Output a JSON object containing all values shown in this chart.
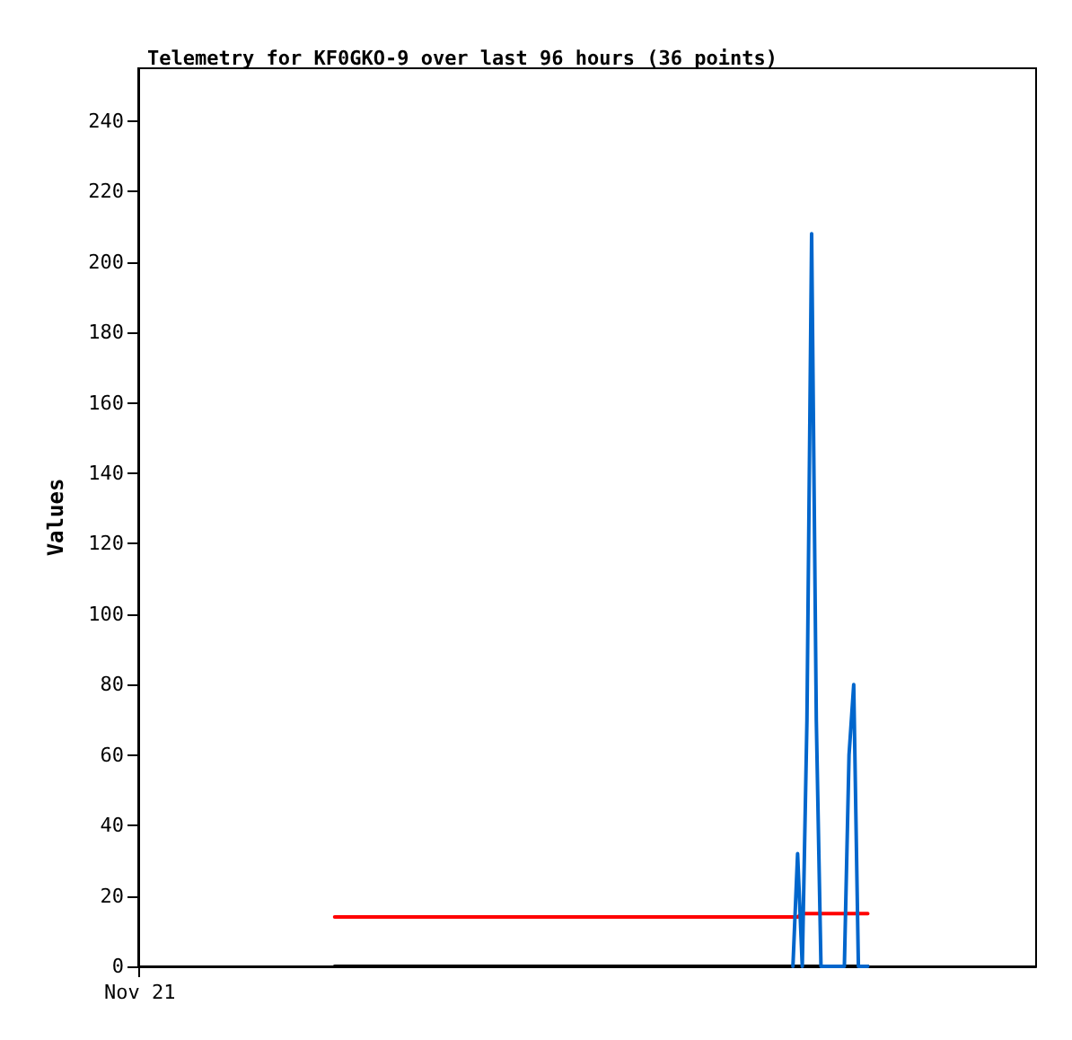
{
  "chart_data": {
    "type": "line",
    "title": "Telemetry for KF0GKO-9 over last 96 hours (36 points)",
    "ylabel": "Values",
    "annotations": [
      "Nov 21"
    ],
    "categories": [
      null,
      null,
      null,
      null,
      null,
      null,
      null,
      null,
      null,
      null,
      null,
      null,
      null,
      null,
      null,
      null,
      null,
      null,
      null,
      null,
      null,
      null,
      null,
      null,
      null,
      null,
      null,
      null,
      null,
      null,
      null,
      null,
      null,
      null,
      null,
      null,
      null,
      null,
      null,
      null,
      null,
      null,
      null,
      null,
      null,
      null,
      null,
      null,
      null,
      null,
      null,
      null,
      null,
      null,
      null,
      null,
      null,
      null,
      null,
      null,
      null,
      null,
      null,
      null,
      null,
      null,
      null,
      null,
      null,
      null,
      null,
      null,
      null,
      null,
      null,
      null,
      null,
      null,
      null,
      null,
      null,
      null,
      null,
      null,
      null,
      null,
      null,
      null,
      null,
      null,
      null,
      null,
      null,
      null,
      null,
      null,
      null,
      null,
      null,
      null,
      null,
      null,
      null,
      null,
      null,
      null,
      null,
      null,
      null,
      null,
      null,
      null,
      null,
      null,
      null,
      null,
      null,
      null,
      null,
      null,
      null,
      null,
      null,
      null,
      null,
      null,
      null,
      null,
      null,
      null,
      null,
      null,
      null,
      null,
      null,
      null,
      null,
      null,
      null,
      null,
      null,
      null,
      null,
      null,
      null,
      null,
      null,
      null,
      null,
      null,
      null,
      null,
      null,
      null,
      null,
      null,
      null,
      null,
      null,
      null,
      null,
      null,
      null,
      null,
      null,
      null,
      null,
      null,
      null,
      null,
      null,
      null,
      null,
      null,
      null,
      null,
      null,
      null,
      null,
      null,
      null,
      null,
      null,
      null,
      null,
      null,
      null,
      null,
      null,
      null,
      null,
      null,
      null
    ],
    "ylim": [
      0,
      255
    ],
    "yticks": [
      0,
      20,
      40,
      60,
      80,
      100,
      120,
      140,
      160,
      180,
      200,
      220,
      240
    ],
    "grid": false,
    "series": [
      {
        "color": "#000000",
        "values": [
          null,
          null,
          null,
          null,
          null,
          null,
          null,
          null,
          null,
          null,
          null,
          null,
          null,
          null,
          null,
          null,
          null,
          null,
          null,
          null,
          null,
          null,
          null,
          null,
          null,
          null,
          null,
          null,
          null,
          null,
          null,
          null,
          null,
          null,
          null,
          null,
          null,
          null,
          null,
          null,
          null,
          null,
          0,
          0,
          0,
          0,
          0,
          0,
          0,
          0,
          0,
          0,
          0,
          0,
          0,
          0,
          0,
          0,
          0,
          0,
          0,
          0,
          0,
          0,
          0,
          0,
          0,
          0,
          0,
          0,
          0,
          0,
          0,
          0,
          0,
          0,
          0,
          0,
          0,
          0,
          0,
          0,
          0,
          0,
          0,
          0,
          0,
          0,
          0,
          0,
          0,
          0,
          0,
          0,
          0,
          0,
          0,
          0,
          0,
          0,
          0,
          0,
          0,
          0,
          0,
          0,
          0,
          0,
          0,
          0,
          0,
          0,
          0,
          0,
          0,
          0,
          0,
          0,
          0,
          0,
          0,
          0,
          0,
          0,
          0,
          0,
          0,
          0,
          0,
          0,
          0,
          0,
          0,
          0,
          0,
          0,
          0,
          0,
          0,
          0,
          0,
          0,
          0,
          0,
          0,
          0,
          0,
          0,
          0,
          0,
          0,
          0,
          0,
          0,
          0,
          0,
          0,
          null,
          null,
          null,
          null,
          null,
          null,
          null,
          null,
          null,
          null,
          null,
          null,
          null,
          null,
          null,
          null,
          null,
          null,
          null,
          null,
          null,
          null,
          null,
          null,
          null,
          null,
          null,
          null,
          null,
          null,
          null,
          null,
          null,
          null,
          null,
          null
        ]
      },
      {
        "color": "#ff0000",
        "values": [
          null,
          null,
          null,
          null,
          null,
          null,
          null,
          null,
          null,
          null,
          null,
          null,
          null,
          null,
          null,
          null,
          null,
          null,
          null,
          null,
          null,
          null,
          null,
          null,
          null,
          null,
          null,
          null,
          null,
          null,
          null,
          null,
          null,
          null,
          null,
          null,
          null,
          null,
          null,
          null,
          null,
          null,
          14,
          14,
          14,
          14,
          14,
          14,
          14,
          14,
          14,
          14,
          14,
          14,
          14,
          14,
          14,
          14,
          14,
          14,
          14,
          14,
          14,
          14,
          14,
          14,
          14,
          14,
          14,
          14,
          14,
          14,
          14,
          14,
          14,
          14,
          14,
          14,
          14,
          14,
          14,
          14,
          14,
          14,
          14,
          14,
          14,
          14,
          14,
          14,
          14,
          14,
          14,
          14,
          14,
          14,
          14,
          14,
          14,
          14,
          14,
          14,
          14,
          14,
          14,
          14,
          14,
          14,
          14,
          14,
          14,
          14,
          14,
          14,
          14,
          14,
          14,
          14,
          14,
          14,
          14,
          14,
          14,
          14,
          14,
          14,
          14,
          14,
          14,
          14,
          14,
          14,
          14,
          14,
          14,
          14,
          14,
          14,
          14,
          14,
          14,
          14,
          15,
          15,
          15,
          15,
          15,
          15,
          15,
          15,
          15,
          15,
          15,
          15,
          15,
          15,
          15,
          null,
          null,
          null,
          null,
          null,
          null,
          null,
          null,
          null,
          null,
          null,
          null,
          null,
          null,
          null,
          null,
          null,
          null,
          null,
          null,
          null,
          null,
          null,
          null,
          null,
          null,
          null,
          null,
          null,
          null,
          null,
          null,
          null,
          null,
          null,
          null
        ]
      },
      {
        "color": "#0066cc",
        "values": [
          null,
          null,
          null,
          null,
          null,
          null,
          null,
          null,
          null,
          null,
          null,
          null,
          null,
          null,
          null,
          null,
          null,
          null,
          null,
          null,
          null,
          null,
          null,
          null,
          null,
          null,
          null,
          null,
          null,
          null,
          null,
          null,
          null,
          null,
          null,
          null,
          null,
          null,
          null,
          null,
          null,
          null,
          null,
          null,
          null,
          null,
          null,
          null,
          null,
          null,
          null,
          null,
          null,
          null,
          null,
          null,
          null,
          null,
          null,
          null,
          null,
          null,
          null,
          null,
          null,
          null,
          null,
          null,
          null,
          null,
          null,
          null,
          null,
          null,
          null,
          null,
          null,
          null,
          null,
          null,
          null,
          null,
          null,
          null,
          null,
          null,
          null,
          null,
          null,
          null,
          null,
          null,
          null,
          null,
          null,
          null,
          null,
          null,
          null,
          null,
          null,
          null,
          null,
          null,
          null,
          null,
          null,
          null,
          null,
          null,
          null,
          null,
          null,
          null,
          null,
          null,
          null,
          null,
          null,
          null,
          null,
          null,
          null,
          null,
          null,
          null,
          null,
          null,
          null,
          null,
          null,
          null,
          null,
          null,
          null,
          null,
          null,
          null,
          null,
          null,
          0,
          32,
          0,
          70,
          208,
          70,
          0,
          0,
          0,
          0,
          0,
          0,
          60,
          80,
          0,
          0,
          0,
          null,
          null,
          null,
          null,
          null,
          null,
          null,
          null,
          null,
          null,
          null,
          null,
          null,
          null,
          null,
          null,
          null,
          null,
          null,
          null,
          null,
          null,
          null,
          null,
          null,
          null,
          null,
          null,
          null,
          null,
          null,
          null,
          null,
          null,
          null,
          null
        ]
      }
    ]
  }
}
